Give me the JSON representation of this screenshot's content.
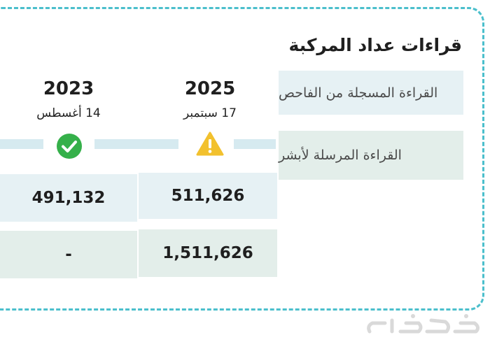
{
  "header": {
    "title": "قراءات عداد المركبة"
  },
  "rows": {
    "inspection_label": "القراءة المسجلة من الفاحص",
    "absher_label": "القراءة المرسلة لأبشر"
  },
  "columns": [
    {
      "year": "2025",
      "date": "17 سبتمبر",
      "status_icon": "warning-icon",
      "inspection_value": "511,626",
      "absher_value": "1,511,626"
    },
    {
      "year": "2023",
      "date": "14 أغسطس",
      "status_icon": "check-icon",
      "inspection_value": "491,132",
      "absher_value": "-"
    }
  ],
  "colors": {
    "accent_dashed_border": "#4bbfcc",
    "warning": "#f2c12e",
    "success": "#35b04a",
    "row_inspection_bg": "#e6f1f4",
    "row_absher_bg": "#e3eeea"
  }
}
